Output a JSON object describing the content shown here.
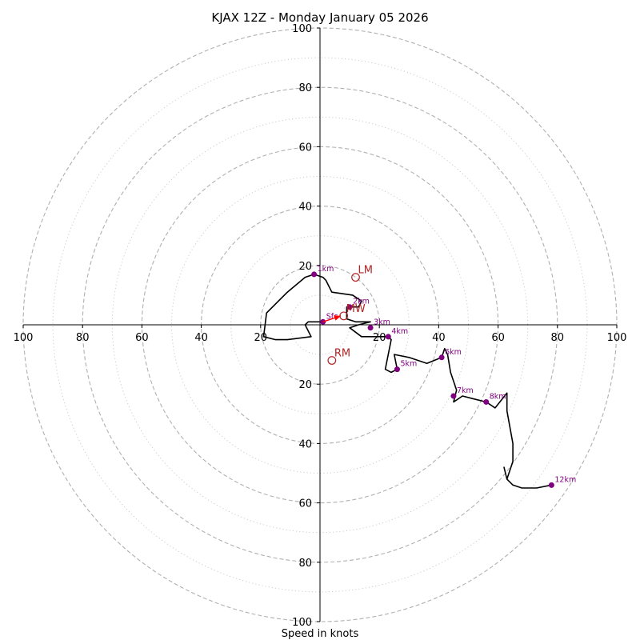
{
  "chart_data": {
    "type": "hodograph",
    "title": "KJAX 12Z - Monday January 05 2026",
    "xlabel": "Speed in knots",
    "units": "knots",
    "max_speed": 100,
    "major_rings": [
      20,
      40,
      60,
      80,
      100
    ],
    "minor_rings": [
      10,
      30,
      50,
      70,
      90
    ],
    "axis_ticks": {
      "x": [
        "100",
        "80",
        "60",
        "40",
        "20",
        "20",
        "40",
        "60",
        "80",
        "100"
      ],
      "y": [
        "100",
        "80",
        "60",
        "40",
        "20",
        "20",
        "40",
        "60",
        "80",
        "100"
      ]
    },
    "tick_values": [
      -100,
      -80,
      -60,
      -40,
      -20,
      20,
      40,
      60,
      80,
      100
    ],
    "trace": [
      [
        1,
        1
      ],
      [
        -4,
        1
      ],
      [
        -5,
        0
      ],
      [
        -3,
        -4
      ],
      [
        -11,
        -5
      ],
      [
        -15,
        -5
      ],
      [
        -19,
        -4
      ],
      [
        -18,
        4
      ],
      [
        -11,
        11
      ],
      [
        -5,
        16
      ],
      [
        -2,
        17
      ],
      [
        1,
        16
      ],
      [
        2,
        15
      ],
      [
        3,
        13
      ],
      [
        4,
        11
      ],
      [
        11,
        10
      ],
      [
        14,
        8
      ],
      [
        13,
        6
      ],
      [
        9,
        6
      ],
      [
        9,
        2
      ],
      [
        12,
        1
      ],
      [
        17,
        1
      ],
      [
        13,
        0
      ],
      [
        10,
        -1
      ],
      [
        14,
        -4
      ],
      [
        23,
        -4
      ],
      [
        24,
        -5
      ],
      [
        23,
        -10
      ],
      [
        22,
        -15
      ],
      [
        24,
        -16
      ],
      [
        26,
        -15
      ],
      [
        25,
        -10
      ],
      [
        30,
        -11
      ],
      [
        36,
        -13
      ],
      [
        41,
        -11
      ],
      [
        42,
        -8
      ],
      [
        43,
        -10
      ],
      [
        44,
        -16
      ],
      [
        46,
        -22
      ],
      [
        45,
        -26
      ],
      [
        48,
        -24
      ],
      [
        52,
        -25
      ],
      [
        56,
        -26
      ],
      [
        59,
        -28
      ],
      [
        63,
        -23
      ],
      [
        63,
        -29
      ],
      [
        65,
        -40
      ],
      [
        65,
        -46
      ],
      [
        63,
        -52
      ],
      [
        62,
        -48
      ],
      [
        63,
        -52
      ],
      [
        65,
        -54
      ],
      [
        68,
        -55
      ],
      [
        73,
        -55
      ],
      [
        78,
        -54
      ]
    ],
    "height_markers": [
      {
        "label": "Sfc",
        "u": 1,
        "v": 1
      },
      {
        "label": "1km",
        "u": -2,
        "v": 17
      },
      {
        "label": "2km",
        "u": 10,
        "v": 6
      },
      {
        "label": "3km",
        "u": 17,
        "v": -1
      },
      {
        "label": "4km",
        "u": 23,
        "v": -4
      },
      {
        "label": "5km",
        "u": 26,
        "v": -15
      },
      {
        "label": "6km",
        "u": 41,
        "v": -11
      },
      {
        "label": "7km",
        "u": 45,
        "v": -24
      },
      {
        "label": "8km",
        "u": 56,
        "v": -26
      },
      {
        "label": "12km",
        "u": 78,
        "v": -54
      }
    ],
    "storm_vectors": [
      {
        "label": "LM",
        "u": 12,
        "v": 16
      },
      {
        "label": "MW",
        "u": 8,
        "v": 3
      },
      {
        "label": "RM",
        "u": 4,
        "v": -12
      }
    ],
    "motion_arrow": {
      "from": [
        1,
        1
      ],
      "to": [
        7,
        3
      ]
    },
    "colors": {
      "trace": "#000000",
      "major_ring": "#b0b0b0",
      "minor_ring": "#cccccc",
      "height_marker": "#800080",
      "storm_vector": "#b22222",
      "arrow": "#ff0000"
    }
  }
}
